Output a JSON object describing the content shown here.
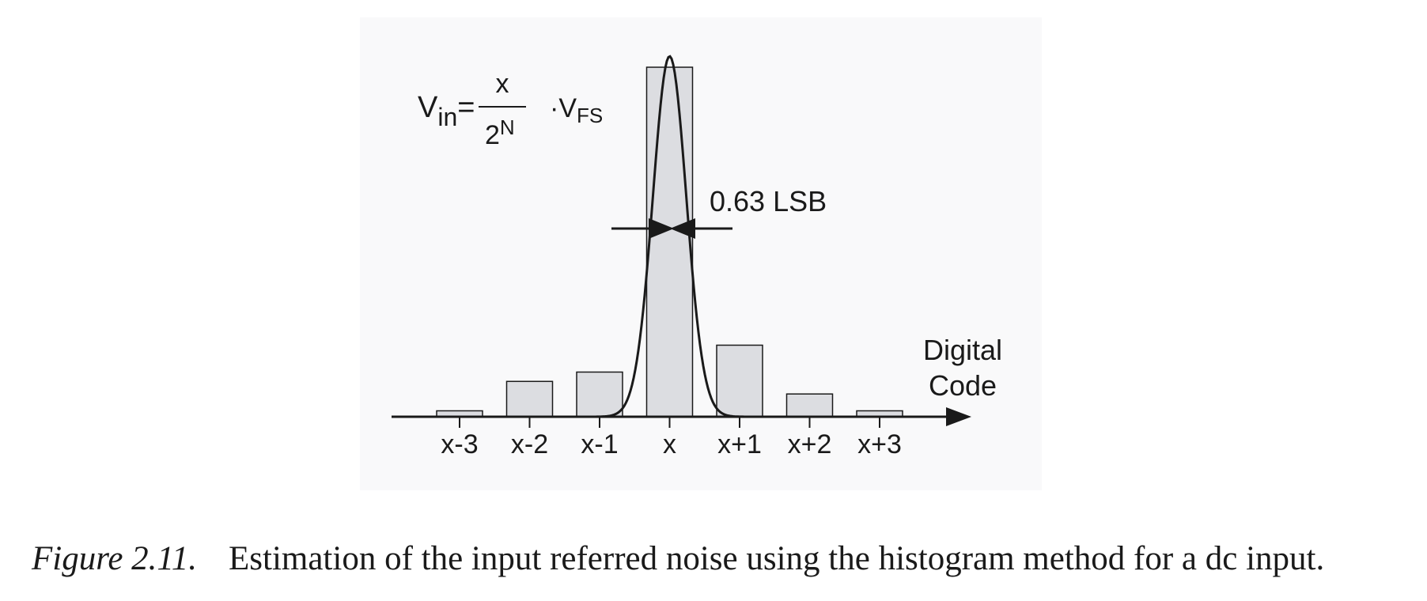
{
  "chart_data": {
    "type": "bar",
    "categories": [
      "x-3",
      "x-2",
      "x-1",
      "x",
      "x+1",
      "x+2",
      "x+3"
    ],
    "values": [
      0.7,
      4.2,
      5.3,
      41.5,
      8.5,
      2.7,
      0.7
    ],
    "ylim": [
      0,
      43
    ],
    "xlabel_lines": [
      "Digital",
      "Code"
    ],
    "curve": {
      "type": "gaussian",
      "center_index": 3,
      "peak": 42.8
    },
    "width_annotation": "0.63 LSB",
    "formula": {
      "lhs": "V",
      "lhs_sub": "in",
      "equals": "=",
      "numerator": "x",
      "denominator_base": "2",
      "denominator_exp": "N",
      "dot": "·",
      "factor": "V",
      "factor_sub": "FS"
    },
    "colors": {
      "bar_fill": "#dcdde1",
      "bar_stroke": "#1a1a1a",
      "curve": "#1a1a1a",
      "axis": "#1a1a1a",
      "panel": "#f9f9fa"
    }
  },
  "caption": {
    "label": "Figure 2.11.",
    "text": "Estimation of the input referred noise using the histogram method for a dc input."
  }
}
